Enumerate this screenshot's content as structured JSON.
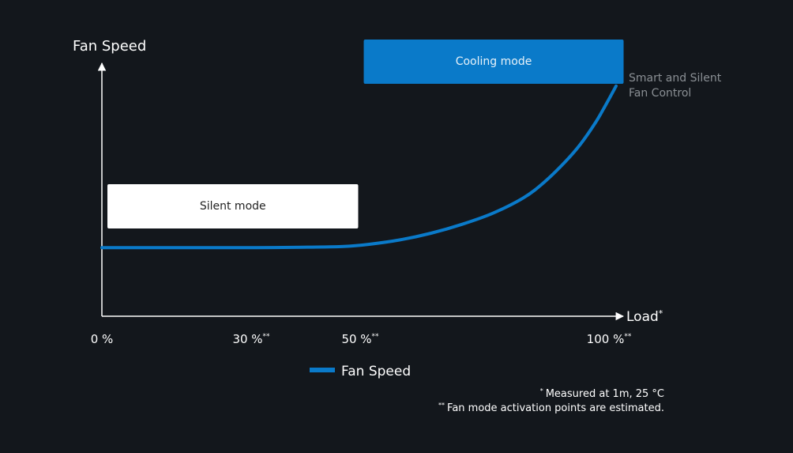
{
  "chart_data": {
    "type": "line",
    "ylabel": "Fan Speed",
    "xlabel": "Load",
    "xlabel_marker": "*",
    "x_ticks": [
      {
        "value": 0,
        "label": "0 %",
        "marker": ""
      },
      {
        "value": 30,
        "label": "30 %",
        "marker": "**"
      },
      {
        "value": 50,
        "label": "50 %",
        "marker": "**"
      },
      {
        "value": 100,
        "label": "100 %",
        "marker": "**"
      }
    ],
    "xlim": [
      0,
      100
    ],
    "ylim": [
      0,
      100
    ],
    "series": [
      {
        "name": "Fan Speed",
        "color": "#0a7ac9",
        "x": [
          0,
          10,
          20,
          30,
          40,
          47,
          52,
          58,
          64,
          70,
          76,
          82,
          86,
          90,
          93,
          96,
          98,
          100
        ],
        "y": [
          31,
          31,
          31,
          31,
          31.2,
          31.5,
          32.5,
          34.5,
          37.5,
          41.5,
          46.5,
          53.5,
          60.5,
          69.5,
          77.5,
          87.5,
          95.5,
          104
        ]
      }
    ],
    "annotations": {
      "silent_mode": {
        "label": "Silent mode",
        "x_range": [
          0,
          50
        ]
      },
      "cooling_mode": {
        "label": "Cooling mode",
        "x_range": [
          52,
          103
        ]
      },
      "curve_label": {
        "line1": "Smart and Silent",
        "line2": "Fan Control"
      }
    },
    "grid": false,
    "legend": "bottom-center"
  },
  "footnotes": {
    "note1_marker": "*",
    "note1": "Measured at 1m, 25 °C",
    "note2_marker": "**",
    "note2": "Fan mode activation points are estimated."
  },
  "colors": {
    "background": "#13171c",
    "axis": "#ffffff",
    "cooling_box": "#0a7ac9",
    "silent_box": "#ffffff",
    "curve_label": "#8a8f94"
  }
}
